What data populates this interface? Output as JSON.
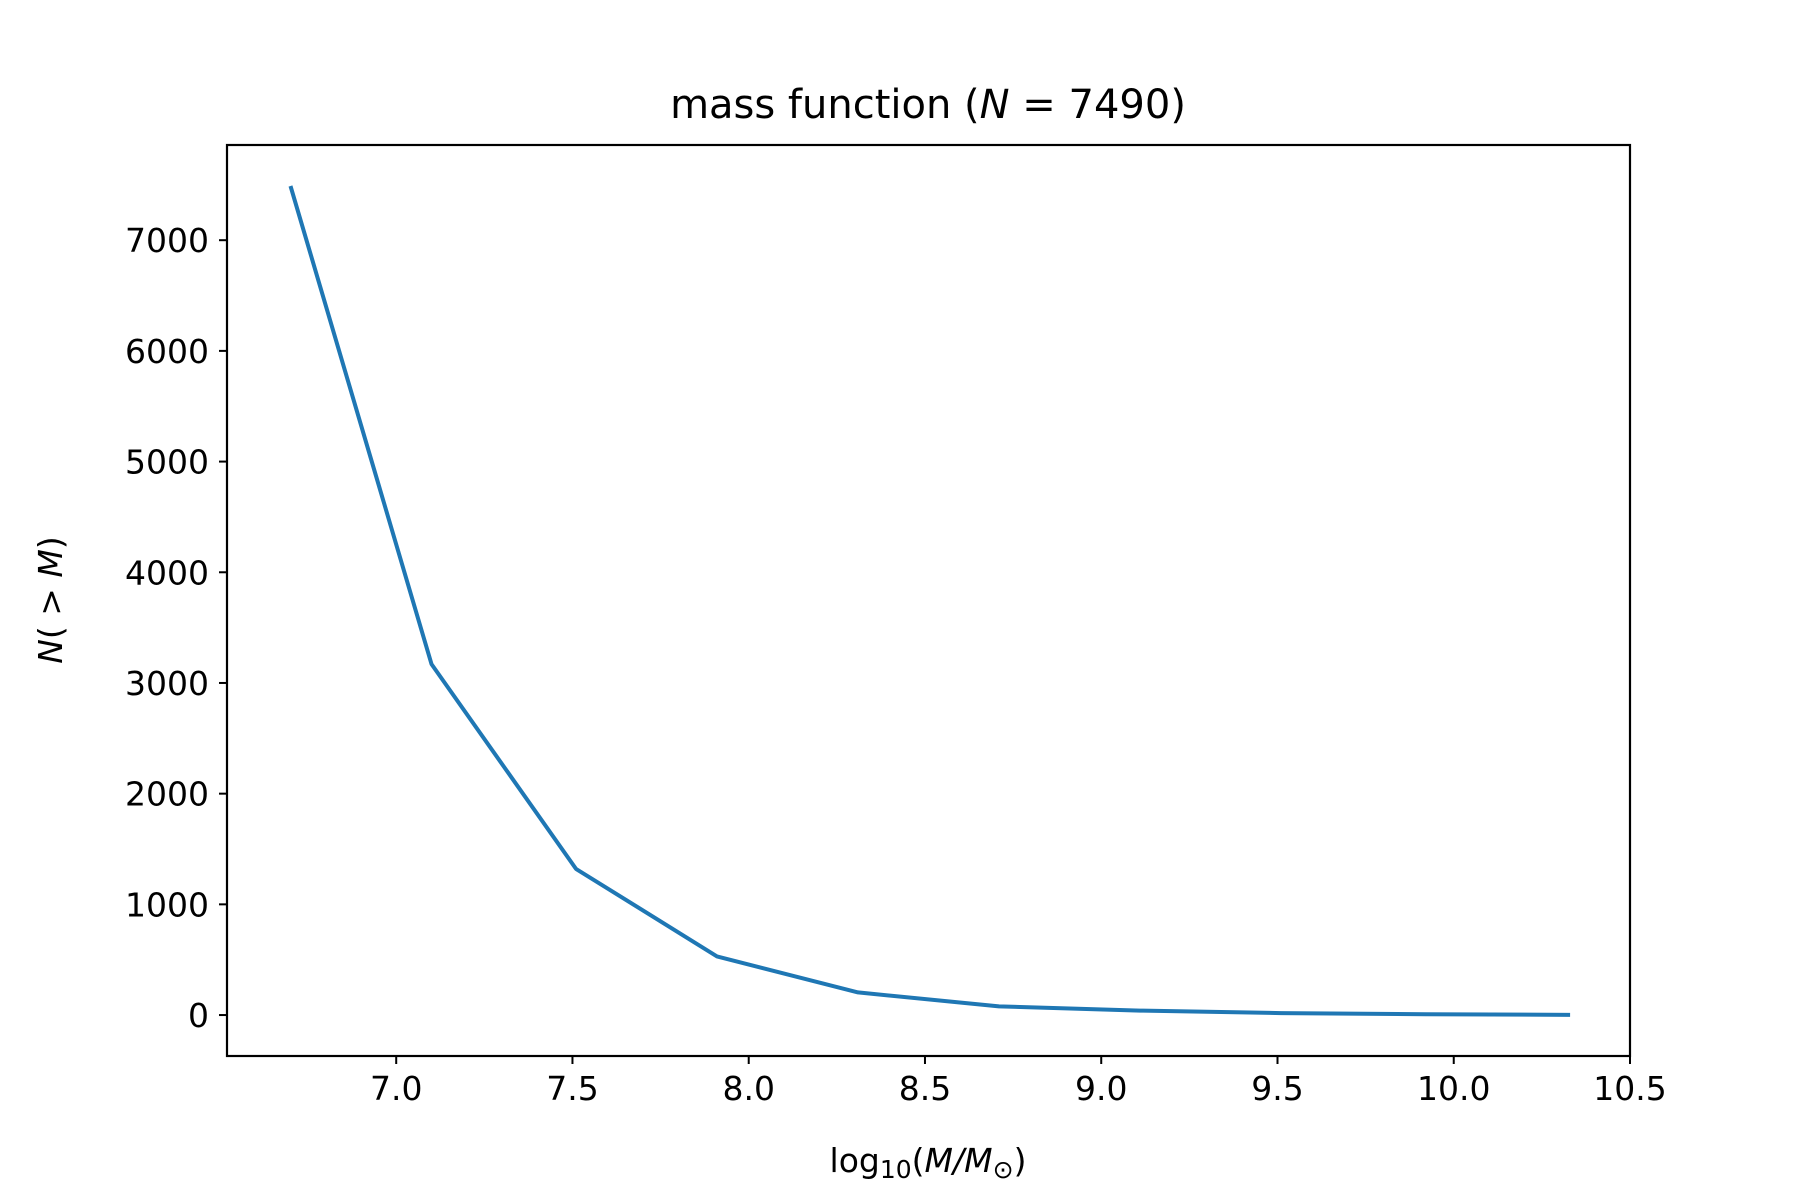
{
  "chart_data": {
    "type": "line",
    "title": {
      "prefix": "mass function (",
      "var": "N",
      "eq": " = ",
      "value": "7490",
      "suffix": ")"
    },
    "xlabel": {
      "pre": "log",
      "sub": "10",
      "open": "(",
      "m1": "M",
      "slash": "/",
      "m2": "M",
      "m2sub": "⊙",
      "close": ")"
    },
    "ylabel": {
      "var": "N",
      "open": "( > ",
      "m": "M",
      "close": ")"
    },
    "xlim": [
      6.52,
      10.5
    ],
    "ylim": [
      -370,
      7860
    ],
    "xticks": [
      7.0,
      7.5,
      8.0,
      8.5,
      9.0,
      9.5,
      10.0,
      10.5
    ],
    "xtick_labels": [
      "7.0",
      "7.5",
      "8.0",
      "8.5",
      "9.0",
      "9.5",
      "10.0",
      "10.5"
    ],
    "yticks": [
      0,
      1000,
      2000,
      3000,
      4000,
      5000,
      6000,
      7000
    ],
    "ytick_labels": [
      "0",
      "1000",
      "2000",
      "3000",
      "4000",
      "5000",
      "6000",
      "7000"
    ],
    "grid": false,
    "series": [
      {
        "color": "#1f77b4",
        "x": [
          6.7,
          7.1,
          7.51,
          7.91,
          8.31,
          8.71,
          9.11,
          9.51,
          9.92,
          10.33
        ],
        "y": [
          7490,
          3170,
          1320,
          530,
          205,
          78,
          40,
          18,
          8,
          1
        ]
      }
    ]
  }
}
